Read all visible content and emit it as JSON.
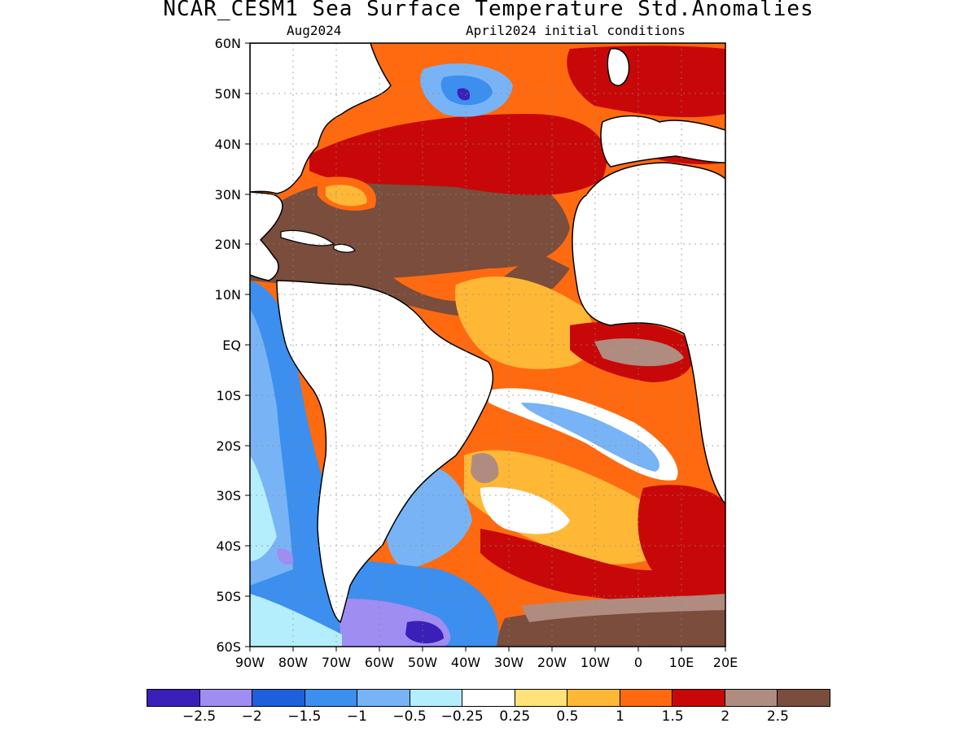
{
  "title": "NCAR_CESM1 Sea Surface Temperature Std.Anomalies",
  "subtitle_left": "Aug2024",
  "subtitle_right": "April2024 initial conditions",
  "map": {
    "lat_labels": [
      "60N",
      "50N",
      "40N",
      "30N",
      "20N",
      "10N",
      "EQ",
      "10S",
      "20S",
      "30S",
      "40S",
      "50S",
      "60S"
    ],
    "lon_labels": [
      "90W",
      "80W",
      "70W",
      "60W",
      "50W",
      "40W",
      "30W",
      "20W",
      "10W",
      "0",
      "10E",
      "20E"
    ],
    "lat_range": [
      -60,
      60
    ],
    "lon_range": [
      -90,
      20
    ],
    "grid": true
  },
  "colorbar": {
    "colors": [
      "#3a1fb8",
      "#9f8df2",
      "#1e5fdc",
      "#3c8fee",
      "#78b4f5",
      "#b4eefc",
      "#ffffff",
      "#ffe27a",
      "#ffb836",
      "#ff6a10",
      "#c80808",
      "#b08c80",
      "#7a4d3c"
    ],
    "labels": [
      "−2.5",
      "−2",
      "−1.5",
      "−1",
      "−0.5",
      "−0.25",
      "0.25",
      "0.5",
      "1",
      "1.5",
      "2",
      "2.5"
    ]
  }
}
